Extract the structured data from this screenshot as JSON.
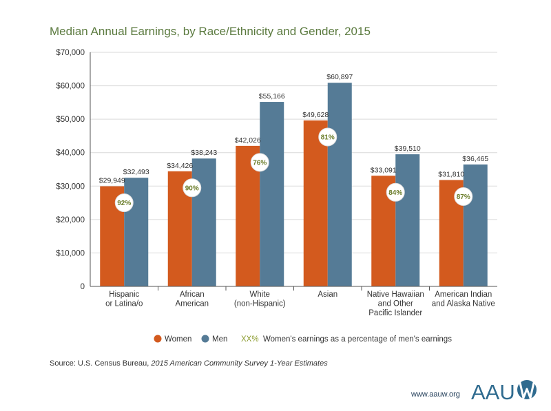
{
  "colors": {
    "women": "#d35a1e",
    "men": "#557b96",
    "percent_text": "#6b7d2a",
    "title": "#5b7a3f",
    "logo": "#2f6b8f"
  },
  "chart_data": {
    "type": "bar",
    "title": "Median Annual Earnings, by Race/Ethnicity and Gender, 2015",
    "xlabel": "",
    "ylabel": "",
    "ylim": [
      0,
      70000
    ],
    "yticks": [
      0,
      10000,
      20000,
      30000,
      40000,
      50000,
      60000,
      70000
    ],
    "ytick_labels": [
      "0",
      "$10,000",
      "$20,000",
      "$30,000",
      "$40,000",
      "$50,000",
      "$60,000",
      "$70,000"
    ],
    "categories": [
      [
        "Hispanic",
        "or Latina/o"
      ],
      [
        "African",
        "American"
      ],
      [
        "White",
        "(non-Hispanic)"
      ],
      [
        "Asian"
      ],
      [
        "Native Hawaiian",
        "and Other",
        "Pacific Islander"
      ],
      [
        "American Indian",
        "and Alaska Native"
      ]
    ],
    "series": [
      {
        "name": "Women",
        "values": [
          29949,
          34426,
          42026,
          49628,
          33091,
          31810
        ],
        "labels": [
          "$29,949",
          "$34,426",
          "$42,026",
          "$49,628",
          "$33,091",
          "$31,810"
        ]
      },
      {
        "name": "Men",
        "values": [
          32493,
          38243,
          55166,
          60897,
          39510,
          36465
        ],
        "labels": [
          "$32,493",
          "$38,243",
          "$55,166",
          "$60,897",
          "$39,510",
          "$36,465"
        ]
      }
    ],
    "percentages": [
      "92%",
      "90%",
      "76%",
      "81%",
      "84%",
      "87%"
    ],
    "legend": {
      "women": "Women",
      "men": "Men",
      "xx": "XX%",
      "xx_text": "Women's earnings as a percentage of men's earnings"
    }
  },
  "source": {
    "prefix": "Source: U.S. Census Bureau, ",
    "italic": "2015 American Community Survey 1-Year Estimates"
  },
  "footer": {
    "url": "www.aauw.org",
    "logo_text": "AAU"
  }
}
